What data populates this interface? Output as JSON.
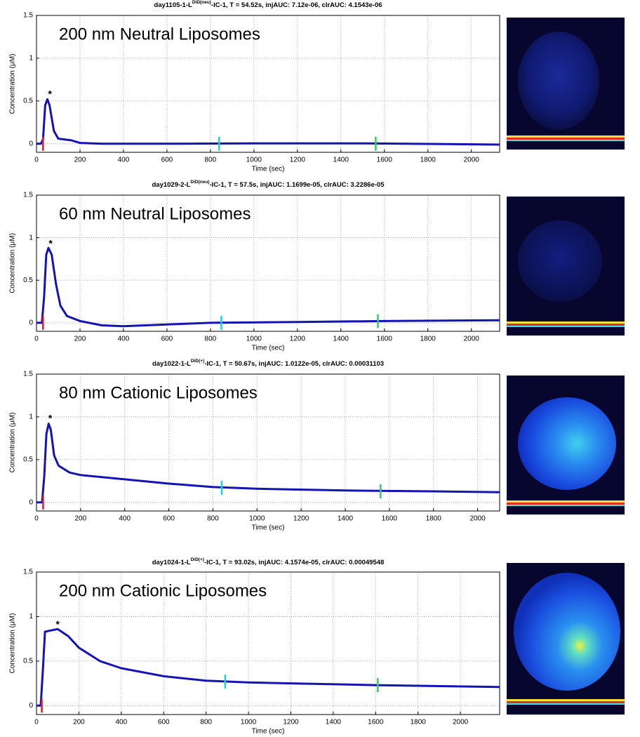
{
  "chart_data": [
    {
      "type": "line",
      "title": "day1105-1-L",
      "title_superscript": "DiD(neu)",
      "title_suffix": "-IC-1, T = 54.52s, injAUC: 7.12e-06, clrAUC: 4.1543e-06",
      "annotation": "200 nm Neutral Liposomes",
      "xlabel": "Time (sec)",
      "ylabel": "Concentration (μM)",
      "xlim": [
        0,
        2130
      ],
      "ylim": [
        -0.1,
        1.5
      ],
      "xticks": [
        0,
        200,
        400,
        600,
        800,
        1000,
        1200,
        1400,
        1600,
        1800,
        2000
      ],
      "yticks": [
        0,
        0.5,
        1,
        1.5
      ],
      "grid": true,
      "x": [
        0,
        20,
        30,
        40,
        50,
        60,
        80,
        100,
        130,
        160,
        200,
        300,
        600,
        1000,
        1500,
        2130
      ],
      "series": [
        {
          "color": "#1414b4",
          "values": [
            0,
            0,
            0.05,
            0.45,
            0.52,
            0.45,
            0.15,
            0.06,
            0.05,
            0.04,
            0.01,
            0,
            0,
            0.005,
            0.005,
            -0.01
          ]
        }
      ],
      "markers": [
        {
          "x": 30,
          "y": 0,
          "color": "#d02030"
        },
        {
          "x": 840,
          "y": 0,
          "color": "#20d0e0"
        },
        {
          "x": 1560,
          "y": 0,
          "color": "#30d060"
        }
      ],
      "peak_marker": {
        "text": "*",
        "x": 62,
        "y": 0.6
      }
    },
    {
      "type": "line",
      "title": "day1029-2-L",
      "title_superscript": "DiD(neu)",
      "title_suffix": "-IC-1, T = 57.5s, injAUC: 1.1699e-05, clrAUC: 3.2286e-05",
      "annotation": "60 nm Neutral Liposomes",
      "xlabel": "Time (sec)",
      "ylabel": "Concentration (μM)",
      "xlim": [
        0,
        2130
      ],
      "ylim": [
        -0.1,
        1.5
      ],
      "xticks": [
        0,
        200,
        400,
        600,
        800,
        1000,
        1200,
        1400,
        1600,
        1800,
        2000
      ],
      "yticks": [
        0,
        0.5,
        1,
        1.5
      ],
      "grid": true,
      "x": [
        0,
        25,
        35,
        45,
        55,
        70,
        90,
        110,
        140,
        200,
        300,
        400,
        600,
        800,
        1200,
        1600,
        2130
      ],
      "series": [
        {
          "color": "#1414b4",
          "values": [
            0,
            0,
            0.3,
            0.8,
            0.88,
            0.8,
            0.45,
            0.2,
            0.08,
            0.02,
            -0.03,
            -0.04,
            -0.02,
            0,
            0.01,
            0.02,
            0.03
          ]
        }
      ],
      "markers": [
        {
          "x": 30,
          "y": 0,
          "color": "#d02030"
        },
        {
          "x": 850,
          "y": 0,
          "color": "#20d0e0"
        },
        {
          "x": 1570,
          "y": 0.02,
          "color": "#30d060"
        }
      ],
      "peak_marker": {
        "text": "*",
        "x": 65,
        "y": 0.95
      }
    },
    {
      "type": "line",
      "title": "day1022-1-L",
      "title_superscript": "DiD(+)",
      "title_suffix": "-IC-1, T = 50.67s, injAUC: 1.0122e-05, clrAUC: 0.00031103",
      "annotation": "80 nm Cationic Liposomes",
      "xlabel": "Time (sec)",
      "ylabel": "Concentration (μM)",
      "xlim": [
        0,
        2100
      ],
      "ylim": [
        -0.1,
        1.5
      ],
      "xticks": [
        0,
        200,
        400,
        600,
        800,
        1000,
        1200,
        1400,
        1600,
        1800,
        2000
      ],
      "yticks": [
        0,
        0.5,
        1,
        1.5
      ],
      "grid": true,
      "x": [
        0,
        25,
        35,
        45,
        55,
        65,
        80,
        100,
        150,
        200,
        400,
        600,
        800,
        1000,
        1400,
        1800,
        2100
      ],
      "series": [
        {
          "color": "#1414b4",
          "values": [
            0,
            0,
            0.3,
            0.8,
            0.92,
            0.85,
            0.55,
            0.43,
            0.35,
            0.32,
            0.27,
            0.22,
            0.18,
            0.16,
            0.14,
            0.13,
            0.12
          ]
        }
      ],
      "markers": [
        {
          "x": 30,
          "y": 0,
          "color": "#d02030"
        },
        {
          "x": 840,
          "y": 0.17,
          "color": "#20d0e0"
        },
        {
          "x": 1560,
          "y": 0.13,
          "color": "#30d060"
        }
      ],
      "peak_marker": {
        "text": "*",
        "x": 62,
        "y": 1.0
      }
    },
    {
      "type": "line",
      "title": "day1024-1-L",
      "title_superscript": "DiD(+)",
      "title_suffix": "-IC-1, T = 93.02s, injAUC: 4.1574e-05, clrAUC: 0.00049548",
      "annotation": "200 nm Cationic Liposomes",
      "xlabel": "Time (sec)",
      "ylabel": "Concentration (μM)",
      "xlim": [
        0,
        2185
      ],
      "ylim": [
        -0.1,
        1.5
      ],
      "xticks": [
        0,
        200,
        400,
        600,
        800,
        1000,
        1200,
        1400,
        1600,
        1800,
        2000
      ],
      "yticks": [
        0,
        0.5,
        1,
        1.5
      ],
      "grid": true,
      "x": [
        0,
        20,
        30,
        40,
        60,
        80,
        100,
        150,
        200,
        300,
        400,
        600,
        800,
        1000,
        1200,
        1600,
        2185
      ],
      "series": [
        {
          "color": "#1414b4",
          "values": [
            0,
            0,
            0.4,
            0.83,
            0.84,
            0.85,
            0.86,
            0.78,
            0.65,
            0.5,
            0.42,
            0.33,
            0.28,
            0.26,
            0.25,
            0.23,
            0.21
          ]
        }
      ],
      "markers": [
        {
          "x": 25,
          "y": 0,
          "color": "#d02030"
        },
        {
          "x": 890,
          "y": 0.27,
          "color": "#20d0e0"
        },
        {
          "x": 1610,
          "y": 0.23,
          "color": "#30d060"
        }
      ],
      "peak_marker": {
        "text": "*",
        "x": 100,
        "y": 0.93
      }
    }
  ]
}
